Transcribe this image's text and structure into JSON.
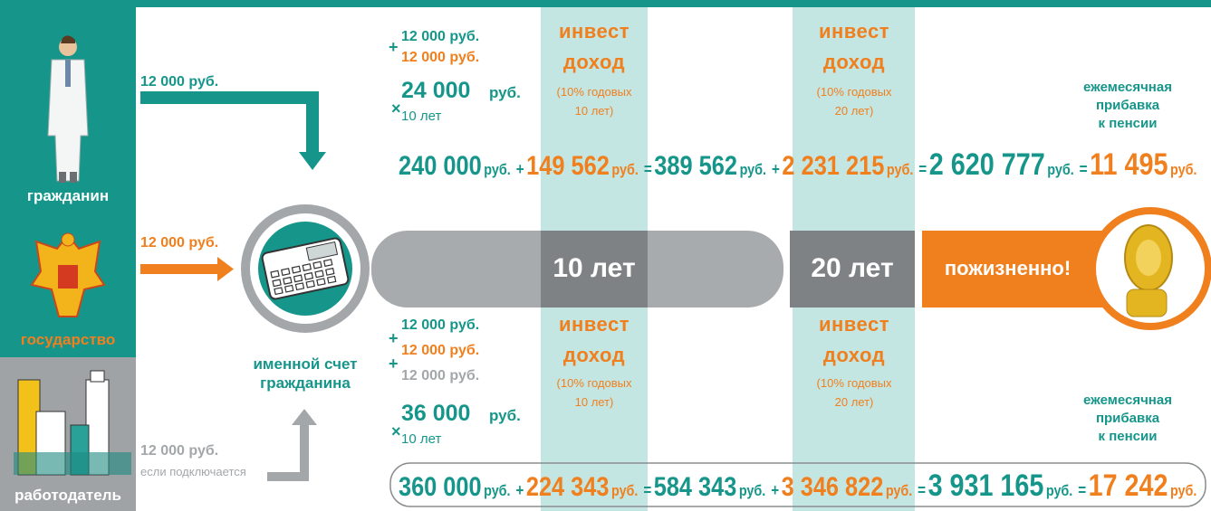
{
  "sources": [
    {
      "label": "гражданин"
    },
    {
      "label": "государство"
    },
    {
      "label": "работодатель"
    }
  ],
  "flows": [
    {
      "amount": "12 000 руб."
    },
    {
      "amount": "12 000 руб."
    },
    {
      "amount": "12 000 руб.",
      "note": "если подключается"
    }
  ],
  "account": {
    "lines": [
      "именной счет",
      "гражданина"
    ]
  },
  "timeline": [
    "10 лет",
    "20 лет",
    "пожизненно!"
  ],
  "scenarios": [
    {
      "contributions": [
        {
          "amount": "12 000 руб.",
          "color": "#16968a"
        },
        {
          "sign": "+",
          "amount": "12 000 руб.",
          "color": "#f07f1e"
        }
      ],
      "sum": {
        "amount": "24 000",
        "unit": "руб."
      },
      "multiplier": {
        "sign": "×",
        "term": "10 лет"
      },
      "invest": [
        {
          "title": [
            "инвест",
            "доход"
          ],
          "note": [
            "(10% годовых",
            "10 лет)"
          ]
        },
        {
          "title": [
            "инвест",
            "доход"
          ],
          "note": [
            "(10% годовых",
            "20 лет)"
          ]
        }
      ],
      "result_label": [
        "ежемесячная",
        "прибавка",
        "к пенсии"
      ],
      "equation": [
        {
          "amount": "240 000",
          "unit": "руб.",
          "color": "#16968a"
        },
        {
          "op": "+"
        },
        {
          "amount": "149 562",
          "unit": "руб.",
          "color": "#f07f1e"
        },
        {
          "op": "="
        },
        {
          "amount": "389 562",
          "unit": "руб.",
          "color": "#16968a"
        },
        {
          "op": "+"
        },
        {
          "amount": "2 231 215",
          "unit": "руб.",
          "color": "#f07f1e"
        },
        {
          "op": "="
        },
        {
          "amount": "2 620 777",
          "unit": "руб.",
          "color": "#16968a"
        },
        {
          "op": "="
        },
        {
          "amount": "11 495",
          "unit": "руб.",
          "color": "#f07f1e"
        }
      ]
    },
    {
      "contributions": [
        {
          "amount": "12 000 руб.",
          "color": "#16968a"
        },
        {
          "sign": "+",
          "amount": "12 000 руб.",
          "color": "#f07f1e"
        },
        {
          "sign": "+",
          "amount": "12 000 руб.",
          "color": "#a3a7aa"
        }
      ],
      "sum": {
        "amount": "36 000",
        "unit": "руб."
      },
      "multiplier": {
        "sign": "×",
        "term": "10 лет"
      },
      "invest": [
        {
          "title": [
            "инвест",
            "доход"
          ],
          "note": [
            "(10% годовых",
            "10 лет)"
          ]
        },
        {
          "title": [
            "инвест",
            "доход"
          ],
          "note": [
            "(10% годовых",
            "20 лет)"
          ]
        }
      ],
      "result_label": [
        "ежемесячная",
        "прибавка",
        "к пенсии"
      ],
      "equation": [
        {
          "amount": "360 000",
          "unit": "руб.",
          "color": "#16968a"
        },
        {
          "op": "+"
        },
        {
          "amount": "224 343",
          "unit": "руб.",
          "color": "#f07f1e"
        },
        {
          "op": "="
        },
        {
          "amount": "584 343",
          "unit": "руб.",
          "color": "#16968a"
        },
        {
          "op": "+"
        },
        {
          "amount": "3 346 822",
          "unit": "руб.",
          "color": "#f07f1e"
        },
        {
          "op": "="
        },
        {
          "amount": "3 931 165",
          "unit": "руб.",
          "color": "#16968a"
        },
        {
          "op": "="
        },
        {
          "amount": "17 242",
          "unit": "руб.",
          "color": "#f07f1e"
        }
      ]
    }
  ]
}
